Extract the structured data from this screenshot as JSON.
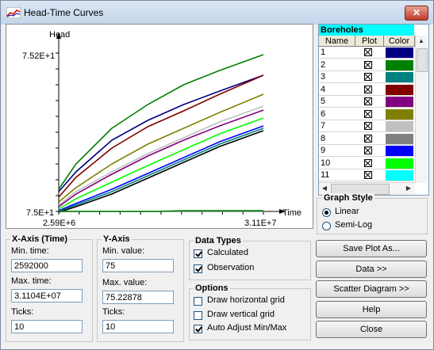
{
  "window": {
    "title": "Head-Time Curves",
    "close_label": "✕"
  },
  "chart_data": {
    "type": "line",
    "ylabel": "Head",
    "xlabel": "Time",
    "x_min_label": "2.59E+6",
    "x_max_label": "3.11E+7",
    "y_min_label": "7.5E+1",
    "y_max_label": "7.52E+1",
    "xlim": [
      2592000,
      31104000
    ],
    "ylim": [
      75,
      75.2
    ],
    "series": [
      {
        "color": "#008000",
        "x": [
          2592000,
          5000000,
          10000000,
          15000000,
          20000000,
          25000000,
          31104000
        ],
        "values": [
          75.028,
          75.06,
          75.105,
          75.135,
          75.16,
          75.178,
          75.198
        ]
      },
      {
        "color": "#000080",
        "x": [
          2592000,
          5000000,
          10000000,
          15000000,
          20000000,
          25000000,
          31104000
        ],
        "values": [
          75.025,
          75.05,
          75.09,
          75.115,
          75.135,
          75.152,
          75.172
        ]
      },
      {
        "color": "#800000",
        "x": [
          2592000,
          5000000,
          10000000,
          15000000,
          20000000,
          25000000,
          31104000
        ],
        "values": [
          75.018,
          75.043,
          75.08,
          75.107,
          75.127,
          75.148,
          75.172
        ]
      },
      {
        "color": "#808000",
        "x": [
          2592000,
          5000000,
          10000000,
          15000000,
          20000000,
          25000000,
          31104000
        ],
        "values": [
          75.012,
          75.03,
          75.06,
          75.085,
          75.105,
          75.125,
          75.148
        ]
      },
      {
        "color": "#c0c0c0",
        "x": [
          2592000,
          5000000,
          10000000,
          15000000,
          20000000,
          25000000,
          31104000
        ],
        "values": [
          75.008,
          75.025,
          75.05,
          75.073,
          75.093,
          75.113,
          75.133
        ]
      },
      {
        "color": "#800080",
        "x": [
          2592000,
          5000000,
          10000000,
          15000000,
          20000000,
          25000000,
          31104000
        ],
        "values": [
          75.006,
          75.022,
          75.047,
          75.07,
          75.09,
          75.108,
          75.128
        ]
      },
      {
        "color": "#00ff00",
        "x": [
          2592000,
          5000000,
          10000000,
          15000000,
          20000000,
          25000000,
          31104000
        ],
        "values": [
          75.003,
          75.016,
          75.037,
          75.058,
          75.078,
          75.098,
          75.118
        ]
      },
      {
        "color": "#0000ff",
        "x": [
          2592000,
          5000000,
          10000000,
          15000000,
          20000000,
          25000000,
          31104000
        ],
        "values": [
          75.001,
          75.01,
          75.028,
          75.048,
          75.068,
          75.088,
          75.108
        ]
      },
      {
        "color": "#008080",
        "x": [
          2592000,
          5000000,
          10000000,
          15000000,
          20000000,
          25000000,
          31104000
        ],
        "values": [
          75.0,
          75.008,
          75.025,
          75.045,
          75.065,
          75.085,
          75.105
        ]
      },
      {
        "color": "#000000",
        "x": [
          2592000,
          5000000,
          10000000,
          15000000,
          20000000,
          25000000,
          31104000
        ],
        "values": [
          74.999,
          75.006,
          75.022,
          75.042,
          75.062,
          75.082,
          75.102
        ]
      },
      {
        "color": "#808080",
        "x": [
          2592000,
          5000000,
          10000000,
          15000000,
          20000000,
          25000000,
          31104000
        ],
        "values": [
          75.0,
          75.0,
          75.0,
          75.0,
          75.0,
          75.0,
          75.0
        ]
      },
      {
        "color": "#008000",
        "x": [
          2592000,
          16000000,
          20000000,
          31104000
        ],
        "values": [
          75.0,
          75.0,
          75.001,
          75.001
        ]
      }
    ]
  },
  "boreholes": {
    "title": "Boreholes",
    "headers": {
      "name": "Name",
      "plot": "Plot",
      "color": "Color"
    },
    "rows": [
      {
        "name": "1",
        "color": "#000080"
      },
      {
        "name": "2",
        "color": "#008000"
      },
      {
        "name": "3",
        "color": "#008080"
      },
      {
        "name": "4",
        "color": "#800000"
      },
      {
        "name": "5",
        "color": "#800080"
      },
      {
        "name": "6",
        "color": "#808000"
      },
      {
        "name": "7",
        "color": "#c0c0c0"
      },
      {
        "name": "8",
        "color": "#808080"
      },
      {
        "name": "9",
        "color": "#0000ff"
      },
      {
        "name": "10",
        "color": "#00ff00"
      },
      {
        "name": "11",
        "color": "#00ffff"
      }
    ]
  },
  "graph_style": {
    "title": "Graph Style",
    "linear": "Linear",
    "semilog": "Semi-Log"
  },
  "x_axis": {
    "title": "X-Axis (Time)",
    "min_label": "Min. time:",
    "min_value": "2592000",
    "max_label": "Max. time:",
    "max_value": "3.1104E+07",
    "ticks_label": "Ticks:",
    "ticks_value": "10"
  },
  "y_axis": {
    "title": "Y-Axis",
    "min_label": "Min. value:",
    "min_value": "75",
    "max_label": "Max. value:",
    "max_value": "75.22878",
    "ticks_label": "Ticks:",
    "ticks_value": "10"
  },
  "data_types": {
    "title": "Data Types",
    "calculated": "Calculated",
    "observation": "Observation"
  },
  "options": {
    "title": "Options",
    "hgrid": "Draw horizontal grid",
    "vgrid": "Draw vertical grid",
    "auto": "Auto Adjust Min/Max"
  },
  "buttons": {
    "save": "Save Plot As...",
    "data": "Data >>",
    "scatter": "Scatter Diagram >>",
    "help": "Help",
    "close": "Close"
  }
}
